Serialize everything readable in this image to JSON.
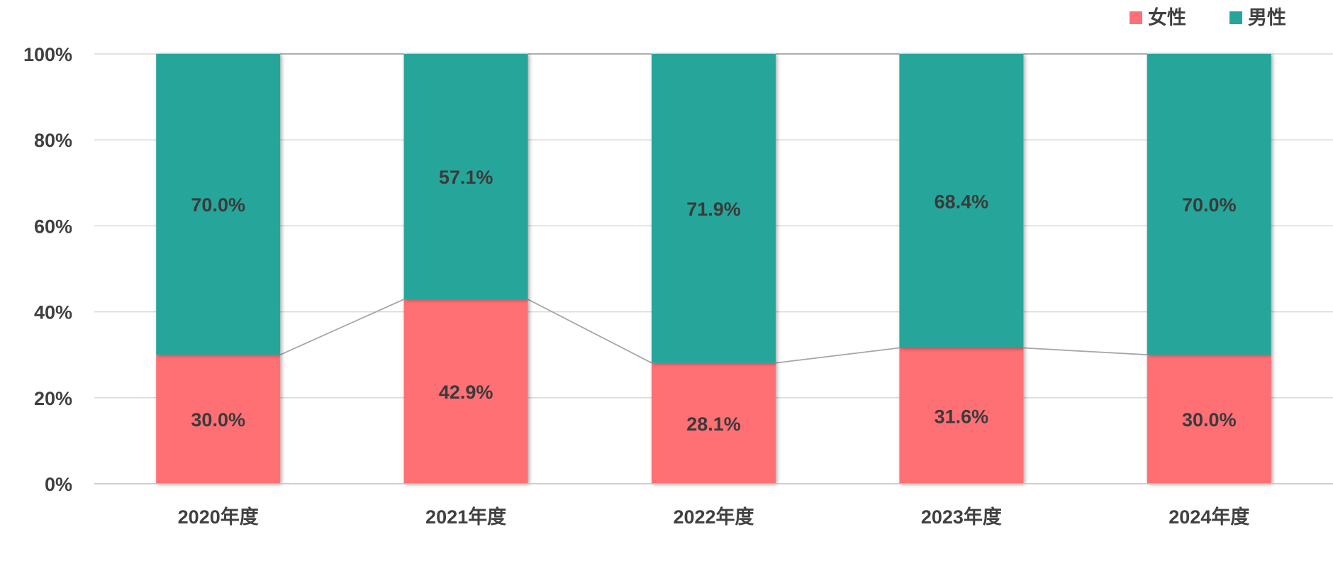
{
  "chart_data": {
    "type": "bar",
    "stacked": true,
    "categories": [
      "2020年度",
      "2021年度",
      "2022年度",
      "2023年度",
      "2024年度"
    ],
    "series": [
      {
        "name": "女性",
        "color": "#ff7074",
        "values": [
          30.0,
          42.9,
          28.1,
          31.6,
          30.0
        ]
      },
      {
        "name": "男性",
        "color": "#26a69a",
        "values": [
          70.0,
          57.1,
          71.9,
          68.4,
          70.0
        ]
      }
    ],
    "data_labels": {
      "女性": [
        "30.0%",
        "42.9%",
        "28.1%",
        "31.6%",
        "30.0%"
      ],
      "男性": [
        "70.0%",
        "57.1%",
        "71.9%",
        "68.4%",
        "70.0%"
      ]
    },
    "y_ticks": [
      "0%",
      "20%",
      "40%",
      "60%",
      "80%",
      "100%"
    ],
    "ylim": [
      0,
      100
    ],
    "grid": true,
    "legend": "top-right",
    "series_lines": true
  }
}
